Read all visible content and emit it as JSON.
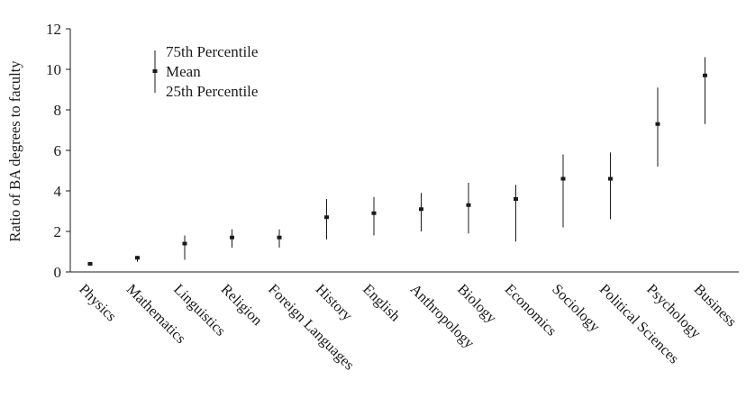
{
  "chart_data": {
    "type": "range",
    "ylabel": "Ratio of BA degrees to faculty",
    "ylim": [
      0,
      12
    ],
    "yticks": [
      0,
      2,
      4,
      6,
      8,
      10,
      12
    ],
    "grid": false,
    "legend": {
      "placement": "top-left",
      "entries": [
        "75th Percentile",
        "Mean",
        "25th Percentile"
      ]
    },
    "categories": [
      "Physics",
      "Mathematics",
      "Linguistics",
      "Religion",
      "Foreign Languages",
      "History",
      "English",
      "Anthropology",
      "Biology",
      "Economics",
      "Sociology",
      "Political Sciences",
      "Psychology",
      "Business"
    ],
    "series": [
      {
        "name": "75th Percentile",
        "values": [
          0.5,
          0.8,
          1.8,
          2.1,
          2.1,
          3.6,
          3.7,
          3.9,
          4.4,
          4.3,
          5.8,
          5.9,
          9.1,
          10.6
        ]
      },
      {
        "name": "Mean",
        "values": [
          0.4,
          0.7,
          1.4,
          1.7,
          1.7,
          2.7,
          2.9,
          3.1,
          3.3,
          3.6,
          4.6,
          4.6,
          7.3,
          9.7
        ]
      },
      {
        "name": "25th Percentile",
        "values": [
          0.3,
          0.5,
          0.6,
          1.2,
          1.2,
          1.6,
          1.8,
          2.0,
          1.9,
          1.5,
          2.2,
          2.6,
          5.2,
          7.3
        ]
      }
    ]
  }
}
